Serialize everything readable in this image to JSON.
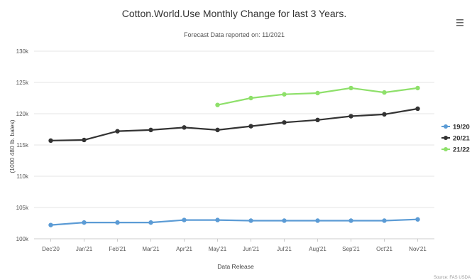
{
  "menu": {
    "icon": "hamburger-menu-icon"
  },
  "chart_data": {
    "type": "line",
    "title": "Cotton.World.Use Monthly Change for last 3 Years.",
    "subtitle": "Forecast Data reported on: 11/2021",
    "xlabel": "Data Release",
    "ylabel": "(1000 480 lb. bales)",
    "categories": [
      "Dec'20",
      "Jan'21",
      "Feb'21",
      "Mar'21",
      "Apr'21",
      "May'21",
      "Jun'21",
      "Jul'21",
      "Aug'21",
      "Sep'21",
      "Oct'21",
      "Nov'21"
    ],
    "y_ticks": [
      {
        "value": 100000,
        "label": "100k"
      },
      {
        "value": 105000,
        "label": "105k"
      },
      {
        "value": 110000,
        "label": "110k"
      },
      {
        "value": 115000,
        "label": "115k"
      },
      {
        "value": 120000,
        "label": "120k"
      },
      {
        "value": 125000,
        "label": "125k"
      },
      {
        "value": 130000,
        "label": "130k"
      }
    ],
    "ylim": [
      100000,
      130000
    ],
    "grid": true,
    "legend_position": "right",
    "series": [
      {
        "name": "19/20",
        "color": "#5b9bd5",
        "values": [
          102200,
          102600,
          102600,
          102600,
          103000,
          103000,
          102900,
          102900,
          102900,
          102900,
          102900,
          103100
        ]
      },
      {
        "name": "20/21",
        "color": "#333333",
        "values": [
          115700,
          115800,
          117200,
          117400,
          117800,
          117400,
          118000,
          118600,
          119000,
          119600,
          119900,
          120800
        ]
      },
      {
        "name": "21/22",
        "color": "#8ee06a",
        "values": [
          null,
          null,
          null,
          null,
          null,
          121400,
          122500,
          123100,
          123300,
          124100,
          123400,
          124100
        ]
      }
    ],
    "credits": "Source: FAS USDA"
  }
}
